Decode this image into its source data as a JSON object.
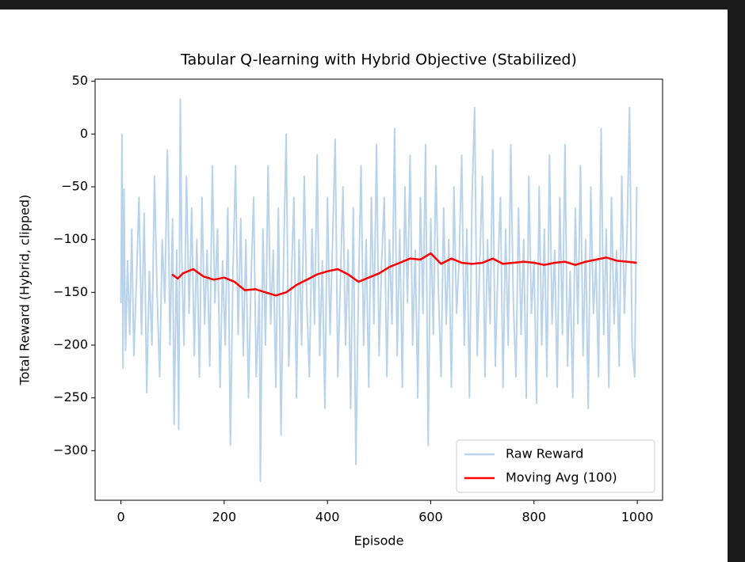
{
  "chart_data": {
    "type": "line",
    "title": "Tabular Q-learning with Hybrid Objective (Stabilized)",
    "x_label": "Episode",
    "y_label": "Total Reward (Hybrid, clipped)",
    "xlim": [
      -50,
      1049
    ],
    "ylim": [
      -347,
      52
    ],
    "xticks": [
      0,
      200,
      400,
      600,
      800,
      1000
    ],
    "yticks": [
      50,
      0,
      {
        "value": -50,
        "label": "−50"
      },
      {
        "value": -100,
        "label": "−100"
      },
      {
        "value": -150,
        "label": "−150"
      },
      {
        "value": -200,
        "label": "−200"
      },
      {
        "value": -250,
        "label": "−250"
      },
      {
        "value": -300,
        "label": "−300"
      }
    ],
    "legend": "lower right",
    "series": [
      {
        "name": "Raw Reward",
        "color": "#b9d3ea",
        "x": [
          0,
          2,
          4,
          6,
          9,
          13,
          17,
          21,
          25,
          30,
          35,
          40,
          45,
          50,
          55,
          60,
          65,
          70,
          75,
          80,
          85,
          90,
          95,
          100,
          103,
          108,
          112,
          115,
          118,
          122,
          127,
          132,
          137,
          142,
          147,
          152,
          157,
          162,
          167,
          172,
          177,
          182,
          187,
          192,
          197,
          202,
          207,
          212,
          217,
          222,
          227,
          232,
          237,
          242,
          247,
          252,
          257,
          262,
          268,
          270,
          275,
          280,
          285,
          290,
          295,
          300,
          305,
          310,
          315,
          320,
          325,
          330,
          335,
          340,
          345,
          350,
          355,
          360,
          365,
          370,
          375,
          380,
          385,
          390,
          395,
          400,
          405,
          410,
          415,
          420,
          425,
          430,
          435,
          440,
          445,
          450,
          455,
          460,
          465,
          470,
          475,
          480,
          485,
          490,
          495,
          500,
          505,
          510,
          515,
          520,
          525,
          530,
          535,
          540,
          545,
          550,
          555,
          560,
          565,
          570,
          575,
          580,
          585,
          590,
          595,
          600,
          605,
          610,
          615,
          620,
          625,
          630,
          635,
          640,
          645,
          650,
          655,
          660,
          665,
          670,
          675,
          680,
          685,
          690,
          695,
          700,
          705,
          710,
          715,
          720,
          725,
          730,
          735,
          740,
          745,
          750,
          755,
          760,
          765,
          770,
          775,
          780,
          785,
          790,
          795,
          800,
          805,
          810,
          815,
          820,
          825,
          830,
          835,
          840,
          845,
          850,
          855,
          860,
          865,
          870,
          875,
          880,
          885,
          890,
          895,
          900,
          905,
          910,
          915,
          920,
          925,
          930,
          935,
          940,
          945,
          950,
          955,
          960,
          965,
          970,
          975,
          980,
          985,
          990,
          995,
          999
        ],
        "values": [
          -160,
          0,
          -222,
          -52,
          -205,
          -120,
          -190,
          -90,
          -210,
          -140,
          -60,
          -190,
          -75,
          -245,
          -130,
          -200,
          -40,
          -150,
          -230,
          -100,
          -160,
          -15,
          -200,
          -80,
          -275,
          -110,
          -280,
          33,
          -120,
          -200,
          -40,
          -170,
          -70,
          -210,
          -100,
          -230,
          -60,
          -180,
          -110,
          -220,
          -30,
          -160,
          -90,
          -240,
          -120,
          -200,
          -70,
          -295,
          -130,
          -30,
          -190,
          -80,
          -210,
          -100,
          -250,
          -140,
          -60,
          -230,
          -150,
          -329,
          -90,
          -200,
          -30,
          -180,
          -110,
          -240,
          -70,
          -285,
          -120,
          0,
          -220,
          -140,
          -60,
          -250,
          -100,
          -200,
          -40,
          -160,
          -230,
          -90,
          -180,
          -20,
          -210,
          -120,
          -260,
          -60,
          -190,
          -100,
          -5,
          -230,
          -140,
          -50,
          -200,
          -110,
          -260,
          -70,
          -313,
          -150,
          -30,
          -200,
          -100,
          -240,
          -60,
          -180,
          -10,
          -210,
          -120,
          -60,
          -230,
          -100,
          -180,
          5,
          -210,
          -90,
          -240,
          -50,
          -160,
          -20,
          -200,
          -110,
          -250,
          -60,
          -170,
          -10,
          -295,
          -80,
          -190,
          -30,
          -150,
          -230,
          -70,
          -180,
          -100,
          -240,
          -50,
          -170,
          -120,
          -20,
          -200,
          -90,
          -250,
          -60,
          25,
          -210,
          -120,
          -40,
          -230,
          -100,
          -180,
          -15,
          -220,
          -130,
          -60,
          -240,
          -90,
          -200,
          -10,
          -160,
          -230,
          -70,
          -190,
          -100,
          -250,
          -40,
          -170,
          -120,
          -255,
          -50,
          -200,
          -90,
          -230,
          -20,
          -180,
          -110,
          -240,
          -60,
          -190,
          -10,
          -220,
          -130,
          -250,
          -70,
          -180,
          -30,
          -210,
          -100,
          -260,
          -50,
          -170,
          -120,
          -230,
          5,
          -190,
          -90,
          -240,
          -60,
          -180,
          -110,
          -220,
          -40,
          -170,
          -100,
          25,
          -200,
          -230,
          -50
        ]
      },
      {
        "name": "Moving Avg (100)",
        "color": "#ff0000",
        "x": [
          99,
          110,
          120,
          140,
          160,
          180,
          200,
          220,
          240,
          260,
          280,
          300,
          320,
          340,
          360,
          380,
          400,
          420,
          440,
          460,
          480,
          500,
          520,
          540,
          560,
          580,
          600,
          620,
          640,
          660,
          680,
          700,
          720,
          740,
          760,
          780,
          800,
          820,
          840,
          860,
          880,
          900,
          920,
          940,
          960,
          980,
          999
        ],
        "values": [
          -133,
          -137,
          -132,
          -128,
          -135,
          -138,
          -136,
          -140,
          -148,
          -147,
          -150,
          -153,
          -150,
          -143,
          -138,
          -133,
          -130,
          -128,
          -133,
          -140,
          -136,
          -132,
          -126,
          -122,
          -118,
          -119,
          -113,
          -123,
          -118,
          -122,
          -123,
          -122,
          -118,
          -123,
          -122,
          -121,
          -122,
          -124,
          -122,
          -121,
          -124,
          -121,
          -119,
          -117,
          -120,
          -121,
          -122
        ]
      }
    ]
  }
}
